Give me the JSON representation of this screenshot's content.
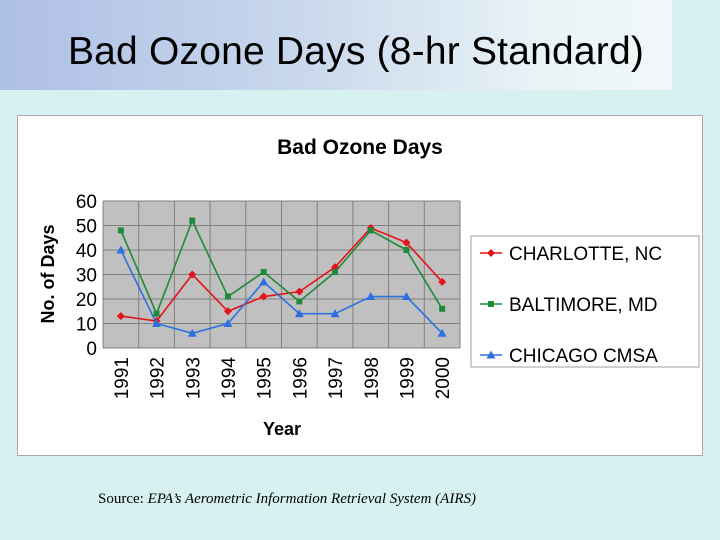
{
  "slide": {
    "title": "Bad Ozone Days (8-hr Standard)",
    "source_label": "Source:",
    "source_text": "EPA’s Aerometric Information Retrieval System (AIRS)"
  },
  "chart_data": {
    "type": "line",
    "title": "Bad Ozone Days",
    "xlabel": "Year",
    "ylabel": "No. of Days",
    "ylim": [
      0,
      60
    ],
    "yticks": [
      0,
      10,
      20,
      30,
      40,
      50,
      60
    ],
    "grid": true,
    "legend_position": "right",
    "categories": [
      "1991",
      "1992",
      "1993",
      "1994",
      "1995",
      "1996",
      "1997",
      "1998",
      "1999",
      "2000"
    ],
    "series": [
      {
        "name": "CHARLOTTE, NC",
        "color": "#e4121a",
        "marker": "diamond",
        "values": [
          13,
          11,
          30,
          15,
          21,
          23,
          33,
          49,
          43,
          27
        ]
      },
      {
        "name": "BALTIMORE, MD",
        "color": "#1e8a3a",
        "marker": "square",
        "values": [
          48,
          14,
          52,
          21,
          31,
          19,
          31,
          48,
          40,
          16
        ]
      },
      {
        "name": "CHICAGO CMSA",
        "color": "#2e6fe0",
        "marker": "triangle",
        "values": [
          40,
          10,
          6,
          10,
          27,
          14,
          14,
          21,
          21,
          6
        ]
      }
    ]
  }
}
